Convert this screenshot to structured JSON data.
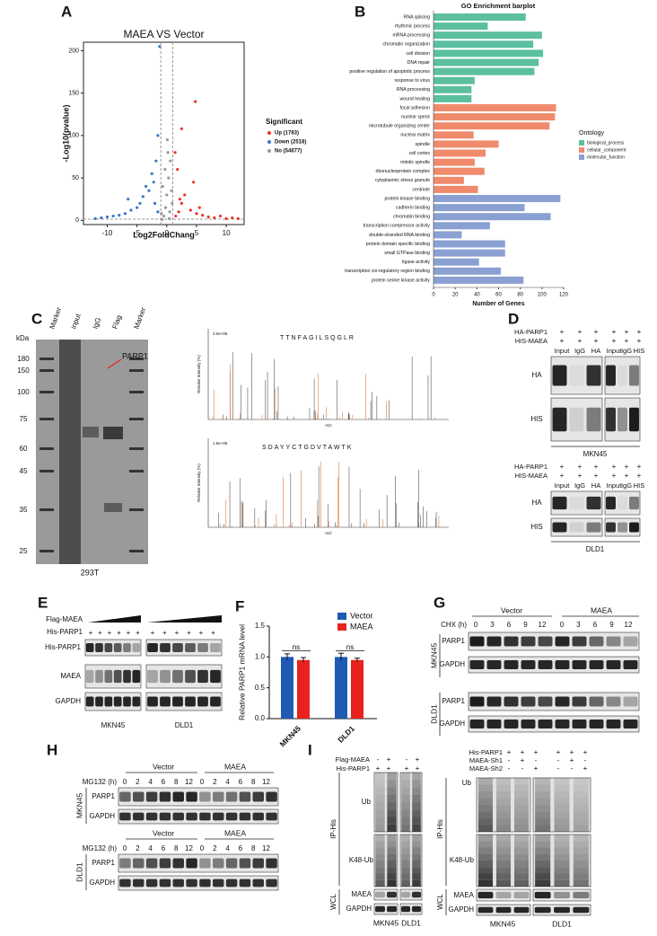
{
  "panel_letters": [
    "A",
    "B",
    "C",
    "D",
    "E",
    "F",
    "G",
    "H",
    "I"
  ],
  "signs": {
    "plus": "+",
    "minus": "-"
  },
  "chart_data": [
    {
      "type": "scatter",
      "title": "MAEA VS Vector",
      "xlabel": "Log2FoldChang",
      "ylabel": "-Log10(pvalue)",
      "xlim": [
        -14,
        13
      ],
      "ylim": [
        -5,
        210
      ],
      "xticks": [
        -10,
        -5,
        0,
        5,
        10
      ],
      "yticks": [
        0,
        50,
        100,
        150,
        200
      ],
      "thresholds": {
        "x": [
          -1,
          1
        ],
        "y": 1.3
      },
      "legend_title": "Significant",
      "series": [
        {
          "name": "Up (1783)",
          "color": "#e8352b",
          "x": [
            1.5,
            2,
            2.5,
            3,
            4,
            5,
            6,
            7,
            8,
            9,
            10,
            11,
            4.8,
            2.5,
            4.5,
            1.8,
            2.2,
            5.5,
            1.4,
            12
          ],
          "values": [
            5,
            10,
            20,
            30,
            12,
            8,
            6,
            4,
            3,
            5,
            2,
            3,
            140,
            108,
            45,
            60,
            25,
            15,
            80,
            2
          ]
        },
        {
          "name": "Down (2518)",
          "color": "#3a78c4",
          "x": [
            -1.5,
            -2,
            -3,
            -4,
            -5,
            -6,
            -7,
            -8,
            -9,
            -10,
            -11,
            -12,
            -2.5,
            -1.8,
            -3.5,
            -1.2,
            -4.5,
            -2.2,
            -1.5,
            -6.5
          ],
          "values": [
            10,
            20,
            35,
            28,
            15,
            12,
            8,
            6,
            5,
            4,
            3,
            2,
            55,
            70,
            40,
            205,
            20,
            45,
            100,
            25
          ]
        },
        {
          "name": "No (54677)",
          "color": "#999999",
          "x": [
            -0.8,
            -0.5,
            -0.2,
            0,
            0.3,
            0.6,
            0.9,
            -0.7,
            0.1,
            0.5,
            -0.3,
            0.8,
            0.2,
            -0.9,
            0.4
          ],
          "values": [
            1,
            5,
            15,
            30,
            50,
            70,
            20,
            40,
            95,
            10,
            60,
            35,
            80,
            8,
            2
          ]
        }
      ]
    },
    {
      "type": "barh",
      "title": "GO Enrichment barplot",
      "xlabel": "Number of Genes",
      "xlim": [
        0,
        120
      ],
      "xticks": [
        0,
        20,
        40,
        60,
        80,
        100,
        120
      ],
      "legend_title": "Ontology",
      "highlight": [
        5,
        6
      ],
      "highlight_color": "#e8412a",
      "categories": [
        "RNA splicing",
        "rhythmic process",
        "mRNA processing",
        "chromatin organization",
        "cell division",
        "DNA repair",
        "positive regulation of apoptotic process",
        "response to virus",
        "RNA processing",
        "wound healing",
        "focal adhesion",
        "nuclear speck",
        "microtubule organizing center",
        "nuclear matrix",
        "spindle",
        "cell cortex",
        "mitotic spindle",
        "ribonucleoprotein complex",
        "cytoplasmic stress granule",
        "centriole",
        "protein kinase binding",
        "cadherin binding",
        "chromatin binding",
        "transcription corepressor activity",
        "double-stranded RNA binding",
        "protein domain specific binding",
        "small GTPase binding",
        "ligase activity",
        "transcription cis-regulatory region binding",
        "protein serine kinase activity"
      ],
      "series": [
        {
          "name": "biological_process",
          "color": "#5bbfa0",
          "values": [
            85,
            50,
            100,
            92,
            101,
            97,
            93,
            38,
            35,
            35,
            null,
            null,
            null,
            null,
            null,
            null,
            null,
            null,
            null,
            null,
            null,
            null,
            null,
            null,
            null,
            null,
            null,
            null,
            null,
            null
          ]
        },
        {
          "name": "cellular_component",
          "color": "#f08a6c",
          "values": [
            null,
            null,
            null,
            null,
            null,
            null,
            null,
            null,
            null,
            null,
            113,
            112,
            107,
            37,
            60,
            48,
            38,
            47,
            28,
            41,
            null,
            null,
            null,
            null,
            null,
            null,
            null,
            null,
            null,
            null
          ]
        },
        {
          "name": "molecular_function",
          "color": "#8aa0d2",
          "values": [
            null,
            null,
            null,
            null,
            null,
            null,
            null,
            null,
            null,
            null,
            null,
            null,
            null,
            null,
            null,
            null,
            null,
            null,
            null,
            null,
            117,
            84,
            108,
            52,
            26,
            66,
            66,
            42,
            62,
            83
          ]
        }
      ]
    },
    {
      "type": "bar",
      "ylabel": "Relative PARP1 mRNA level",
      "categories": [
        "MKN45",
        "DLD1"
      ],
      "ylim": [
        0,
        1.5
      ],
      "yticks": [
        {
          "value": 0,
          "label": "0.0"
        },
        0.5,
        {
          "value": 1,
          "label": "1.0"
        },
        1.5
      ],
      "annotations": [
        "ns",
        "ns"
      ],
      "series": [
        {
          "name": "Vector",
          "color": "#1f5bb5",
          "values": [
            1.0,
            1.0
          ],
          "errors": [
            0.05,
            0.06
          ]
        },
        {
          "name": "MAEA",
          "color": "#e8231f",
          "values": [
            0.95,
            0.95
          ],
          "errors": [
            0.04,
            0.03
          ]
        }
      ]
    }
  ],
  "C": {
    "kda": "kDa",
    "markers": [
      "180",
      "150",
      "100",
      "75",
      "60",
      "45",
      "35",
      "25"
    ],
    "lanes": [
      "Marker",
      "input",
      "IgG",
      "Flag",
      "Marker"
    ],
    "target": "PARP1",
    "cell": "293T",
    "ylabel": "Relative Intensity (%)",
    "xlabel": "m/z",
    "spectra": [
      {
        "scale": "3.0e+05",
        "sequence": "TTNFAGILSQGLR"
      },
      {
        "scale": "1.5e+05",
        "sequence": "SDAYYCTGDVTAWTK"
      }
    ]
  },
  "D": {
    "rows": [
      "HA-PARP1",
      "HIS-MAEA"
    ],
    "lanes": [
      "Input",
      "IgG",
      "HA",
      "Input",
      "IgG",
      "HIS"
    ],
    "blots": [
      "HA",
      "HIS"
    ],
    "cells": [
      "MKN45",
      "DLD1"
    ]
  },
  "E": {
    "treat": [
      "Flag-MAEA",
      "His-PARP1"
    ],
    "rows": [
      "His-PARP1",
      "MAEA",
      "GAPDH"
    ],
    "cells": [
      "MKN45",
      "DLD1"
    ]
  },
  "G": {
    "groups": [
      "Vector",
      "MAEA"
    ],
    "treat": "CHX (h)",
    "times": [
      "0",
      "3",
      "6",
      "9",
      "12"
    ],
    "rows": [
      "PARP1",
      "GAPDH"
    ],
    "cells": [
      "MKN45",
      "DLD1"
    ]
  },
  "H": {
    "groups": [
      "Vector",
      "MAEA"
    ],
    "treat": "MG132 (h)",
    "times": [
      "0",
      "2",
      "4",
      "6",
      "8",
      "12"
    ],
    "rows": [
      "PARP1",
      "GAPDH"
    ],
    "cells": [
      "MKN45",
      "DLD1"
    ]
  },
  "I": {
    "left": {
      "treat": [
        "Flag-MAEA",
        "His-PARP1"
      ],
      "signs": [
        [
          "-",
          "+",
          "-",
          "+"
        ],
        [
          "+",
          "+",
          "+",
          "+"
        ]
      ]
    },
    "right": {
      "treat": [
        "His-PARP1",
        "MAEA-Sh1",
        "MAEA-Sh2"
      ],
      "signs": [
        [
          "+",
          "+",
          "+",
          "+",
          "+",
          "+"
        ],
        [
          "-",
          "+",
          "-",
          "-",
          "+",
          "-"
        ],
        [
          "-",
          "-",
          "+",
          "-",
          "-",
          "+"
        ]
      ]
    },
    "ip": "IP-His",
    "wcl": "WCL",
    "rows": [
      "Ub",
      "K48-Ub",
      "MAEA",
      "GAPDH"
    ],
    "cells": [
      "MKN45",
      "DLD1"
    ]
  }
}
